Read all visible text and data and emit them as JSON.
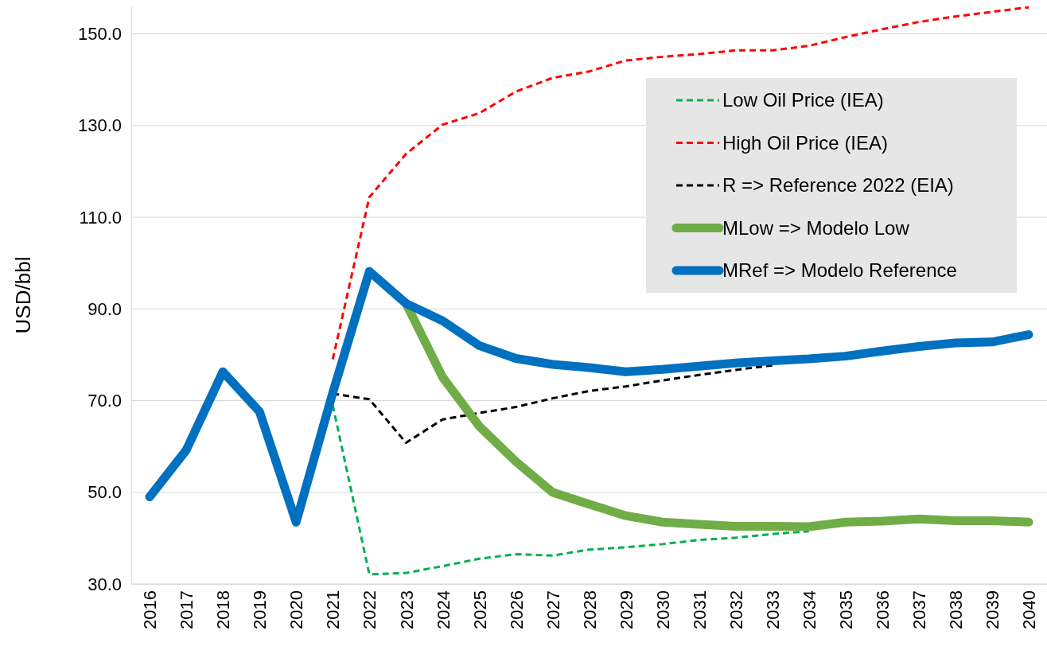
{
  "chart_data": {
    "type": "line",
    "ylabel": "USD/bbl",
    "categories": [
      "2016",
      "2017",
      "2018",
      "2019",
      "2020",
      "2021",
      "2022",
      "2023",
      "2024",
      "2025",
      "2026",
      "2027",
      "2028",
      "2029",
      "2030",
      "2031",
      "2032",
      "2033",
      "2034",
      "2035",
      "2036",
      "2037",
      "2038",
      "2039",
      "2040"
    ],
    "ylim": [
      30,
      156
    ],
    "yticks": [
      {
        "value": 30,
        "label": "30.0"
      },
      {
        "value": 50,
        "label": "50.0"
      },
      {
        "value": 70,
        "label": "70.0"
      },
      {
        "value": 90,
        "label": "90.0"
      },
      {
        "value": 110,
        "label": "110.0"
      },
      {
        "value": 130,
        "label": "130.0"
      },
      {
        "value": 150,
        "label": "150.0"
      }
    ],
    "grid": "y",
    "legend": "top right",
    "marker": "none",
    "series": [
      {
        "name": "Low Oil Price (IEA)",
        "color": "#00b050",
        "line_style": "dashed",
        "values": [
          null,
          null,
          null,
          null,
          null,
          69.0,
          32.1,
          32.4,
          33.9,
          35.5,
          36.5,
          36.2,
          37.5,
          38.0,
          38.7,
          39.6,
          40.1,
          40.9,
          41.5,
          null,
          null,
          null,
          null,
          null,
          null
        ]
      },
      {
        "name": "High Oil Price (IEA)",
        "color": "#ff0000",
        "line_style": "dashed",
        "values": [
          null,
          null,
          null,
          null,
          null,
          79.0,
          114.4,
          123.8,
          130.2,
          132.7,
          137.4,
          140.4,
          141.8,
          144.2,
          145.0,
          145.6,
          146.4,
          146.4,
          147.4,
          149.3,
          151.0,
          152.6,
          153.8,
          154.8,
          155.8
        ]
      },
      {
        "name": "R => Reference 2022 (EIA)",
        "color": "#000000",
        "line_style": "dashed",
        "values": [
          null,
          null,
          null,
          null,
          null,
          71.5,
          70.3,
          60.8,
          65.9,
          67.3,
          68.6,
          70.5,
          72.1,
          73.1,
          74.4,
          75.6,
          76.7,
          77.7,
          null,
          null,
          null,
          null,
          null,
          null,
          null
        ]
      },
      {
        "name": "MLow => Modelo Low",
        "color": "#70ad47",
        "line_style": "solid",
        "values": [
          null,
          null,
          null,
          null,
          null,
          null,
          null,
          91.2,
          75.1,
          64.4,
          56.7,
          50.0,
          47.4,
          44.9,
          43.5,
          43.0,
          42.6,
          42.6,
          42.5,
          43.5,
          43.7,
          44.2,
          43.8,
          43.8,
          43.5
        ]
      },
      {
        "name": "MRef => Modelo Reference",
        "color": "#0070c0",
        "line_style": "solid",
        "values": [
          49.0,
          59.2,
          76.3,
          67.6,
          43.5,
          71.7,
          98.2,
          91.2,
          87.4,
          82.0,
          79.2,
          77.9,
          77.2,
          76.3,
          76.8,
          77.5,
          78.2,
          78.7,
          79.1,
          79.7,
          80.8,
          81.8,
          82.6,
          82.8,
          84.4
        ]
      }
    ]
  }
}
